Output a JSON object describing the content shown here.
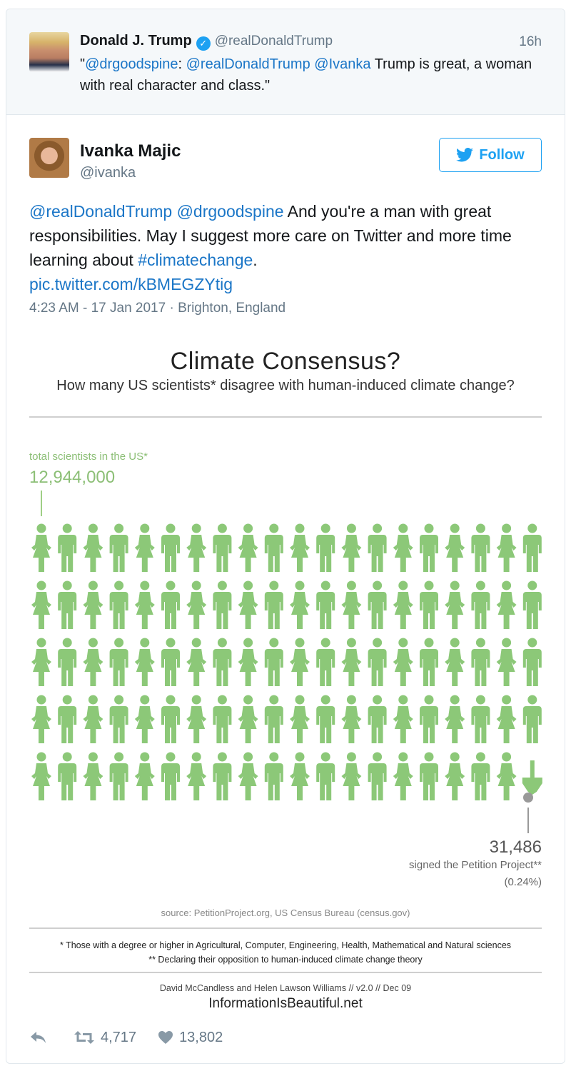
{
  "quoted_tweet": {
    "name": "Donald J. Trump",
    "handle": "@realDonaldTrump",
    "time": "16h",
    "text_parts": [
      "\"",
      "@drgoodspine",
      ": ",
      "@realDonaldTrump",
      " ",
      "@Ivanka",
      " Trump is great, a woman with real character and class.\""
    ]
  },
  "tweet": {
    "name": "Ivanka Majic",
    "handle": "@ivanka",
    "follow_label": "Follow",
    "mention1": "@realDonaldTrump",
    "mention2": "@drgoodspine",
    "text": " And you're a man with great responsibilities. May I suggest more care on Twitter and more time learning about ",
    "hashtag": "#climatechange",
    "period": ".",
    "pic_link": "pic.twitter.com/kBMEGZYtig",
    "meta": "4:23 AM - 17 Jan 2017 · Brighton, England"
  },
  "infographic": {
    "title": "Climate Consensus?",
    "subtitle": "How many US scientists* disagree with human-induced climate change?",
    "total_label": "total scientists in the US*",
    "total_value": "12,944,000",
    "petition_value": "31,486",
    "petition_label": "signed the Petition Project**",
    "petition_pct": "(0.24%)",
    "source": "source: PetitionProject.org, US Census Bureau (census.gov)",
    "footnote1": "* Those with a degree or higher in  Agricultural, Computer, Engineering, Health, Mathematical and Natural sciences",
    "footnote2": "** Declaring their opposition to human-induced climate change theory",
    "credit": "David McCandless and Helen Lawson Williams // v2.0 // Dec 09",
    "site": "InformationIsBeautiful.net",
    "figure_color": "#8cc878",
    "rows": 5,
    "cols": 20
  },
  "actions": {
    "retweet_count": "4,717",
    "like_count": "13,802"
  },
  "colors": {
    "link": "#1b76c7",
    "twitter_blue": "#1da1f2",
    "muted": "#657786"
  }
}
